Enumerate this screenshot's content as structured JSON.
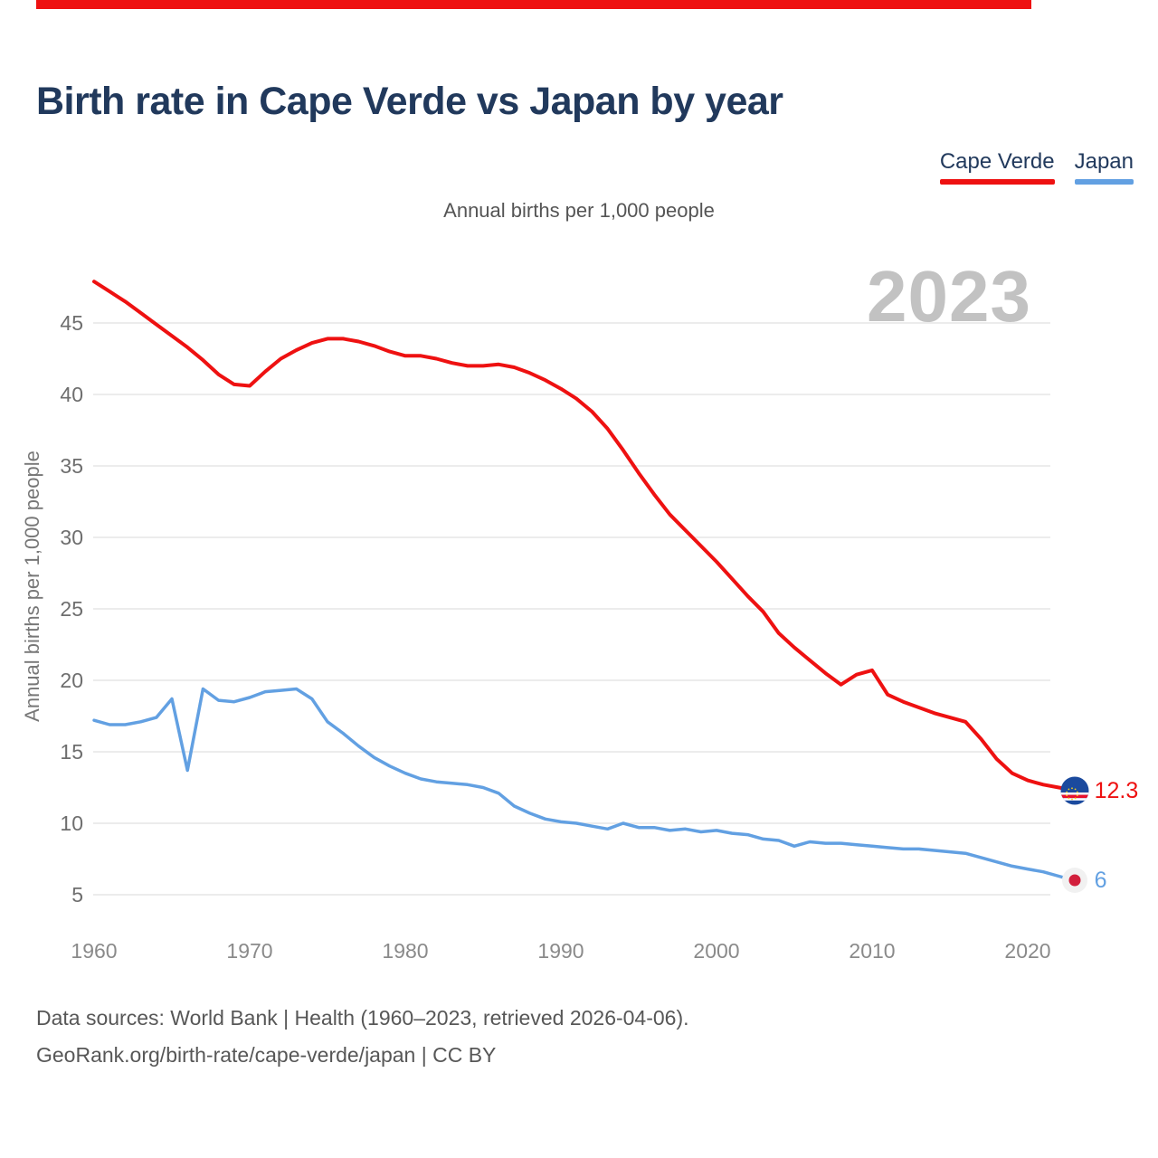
{
  "page": {
    "title": "Birth rate in Cape Verde vs Japan by year",
    "watermark": "2023",
    "footer_line1": "Data sources: World Bank | Health (1960–2023, retrieved 2026-04-06).",
    "footer_line2": "GeoRank.org/birth-rate/cape-verde/japan | CC BY"
  },
  "legend": {
    "items": [
      {
        "label": "Cape Verde",
        "color": "#ee1111"
      },
      {
        "label": "Japan",
        "color": "#62a0e2"
      }
    ]
  },
  "colors": {
    "cape_verde_line": "#ee1111",
    "japan_line": "#62a0e2",
    "title_navy": "#21395c",
    "gridline": "#ececec",
    "watermark_gray": "#c2c2c2",
    "flag_blue": "#1b4a9e",
    "flag_stripe_red": "#e8112d",
    "japan_flag_red": "#d21f3c"
  },
  "chart_data": {
    "type": "line",
    "title": "Birth rate in Cape Verde vs Japan by year",
    "subtitle": "Annual births per 1,000 people",
    "ylabel": "Annual births per 1,000 people",
    "xlabel": "",
    "grid": "horizontal",
    "legend_position": "top-right",
    "xlim": [
      1960,
      2023
    ],
    "ylim": [
      4,
      49
    ],
    "yticks": [
      5,
      10,
      15,
      20,
      25,
      30,
      35,
      40,
      45
    ],
    "xticks": [
      1960,
      1970,
      1980,
      1990,
      2000,
      2010,
      2020
    ],
    "x": [
      1960,
      1961,
      1962,
      1963,
      1964,
      1965,
      1966,
      1967,
      1968,
      1969,
      1970,
      1971,
      1972,
      1973,
      1974,
      1975,
      1976,
      1977,
      1978,
      1979,
      1980,
      1981,
      1982,
      1983,
      1984,
      1985,
      1986,
      1987,
      1988,
      1989,
      1990,
      1991,
      1992,
      1993,
      1994,
      1995,
      1996,
      1997,
      1998,
      1999,
      2000,
      2001,
      2002,
      2003,
      2004,
      2005,
      2006,
      2007,
      2008,
      2009,
      2010,
      2011,
      2012,
      2013,
      2014,
      2015,
      2016,
      2017,
      2018,
      2019,
      2020,
      2021,
      2022,
      2023
    ],
    "series": [
      {
        "name": "Cape Verde",
        "color": "#ee1111",
        "end_label": "12.3",
        "values": [
          47.9,
          47.2,
          46.5,
          45.7,
          44.9,
          44.1,
          43.3,
          42.4,
          41.4,
          40.7,
          40.6,
          41.6,
          42.5,
          43.1,
          43.6,
          43.9,
          43.9,
          43.7,
          43.4,
          43.0,
          42.7,
          42.7,
          42.5,
          42.2,
          42.0,
          42.0,
          42.1,
          41.9,
          41.5,
          41.0,
          40.4,
          39.7,
          38.8,
          37.6,
          36.1,
          34.5,
          33.0,
          31.6,
          30.5,
          29.4,
          28.3,
          27.1,
          25.9,
          24.8,
          23.3,
          22.3,
          21.4,
          20.5,
          19.7,
          20.4,
          20.7,
          19.0,
          18.5,
          18.1,
          17.7,
          17.4,
          17.1,
          15.9,
          14.5,
          13.5,
          13.0,
          12.7,
          12.5,
          12.3
        ]
      },
      {
        "name": "Japan",
        "color": "#62a0e2",
        "end_label": "6",
        "values": [
          17.2,
          16.9,
          16.9,
          17.1,
          17.4,
          18.7,
          13.7,
          19.4,
          18.6,
          18.5,
          18.8,
          19.2,
          19.3,
          19.4,
          18.7,
          17.1,
          16.3,
          15.4,
          14.6,
          14.0,
          13.5,
          13.1,
          12.9,
          12.8,
          12.7,
          12.5,
          12.1,
          11.2,
          10.7,
          10.3,
          10.1,
          10.0,
          9.8,
          9.6,
          10.0,
          9.7,
          9.7,
          9.5,
          9.6,
          9.4,
          9.5,
          9.3,
          9.2,
          8.9,
          8.8,
          8.4,
          8.7,
          8.6,
          8.6,
          8.5,
          8.4,
          8.3,
          8.2,
          8.2,
          8.1,
          8.0,
          7.9,
          7.6,
          7.3,
          7.0,
          6.8,
          6.6,
          6.3,
          6.0
        ]
      }
    ]
  }
}
